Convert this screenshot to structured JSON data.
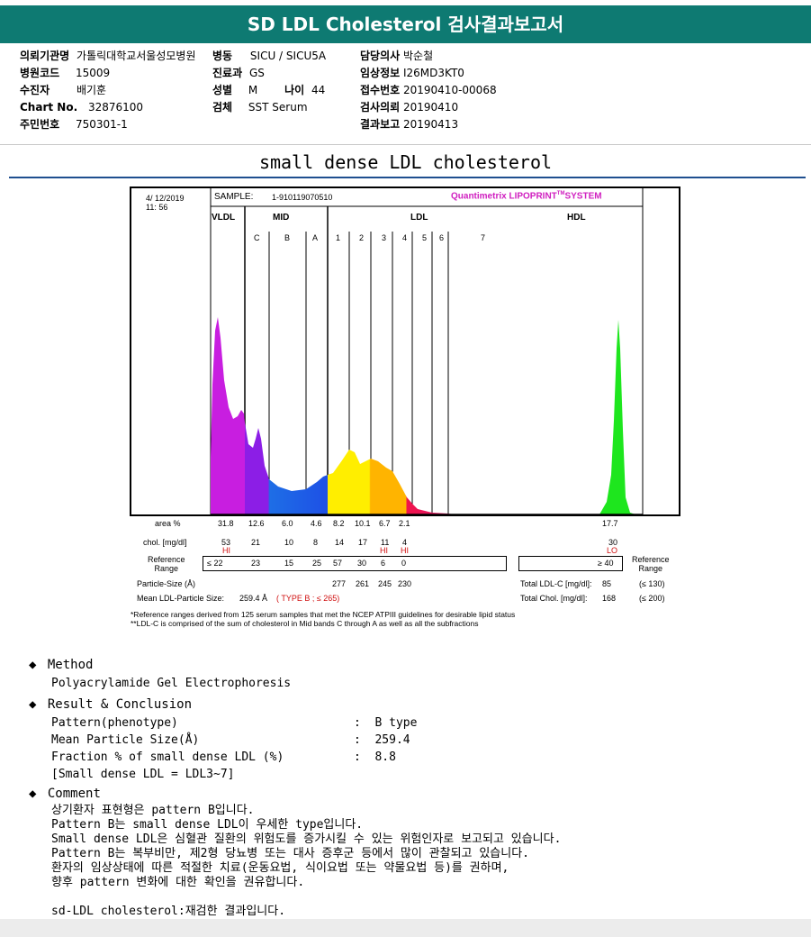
{
  "report_title": "SD LDL Cholesterol 검사결과보고서",
  "patient": {
    "col1": [
      {
        "label": "의뢰기관명",
        "value": "가톨릭대학교서울성모병원"
      },
      {
        "label": "병원코드",
        "value": "15009"
      },
      {
        "label": "수진자",
        "value": "배기훈"
      },
      {
        "label": "Chart No.",
        "value": "32876100"
      },
      {
        "label": "주민번호",
        "value": "750301-1"
      }
    ],
    "col2": [
      {
        "label": "병동",
        "value": "SICU / SICU5A"
      },
      {
        "label": "진료과",
        "value": "GS"
      },
      {
        "label": "성별",
        "value": "M"
      },
      {
        "label": "검체",
        "value": "SST Serum"
      }
    ],
    "age": {
      "label": "나이",
      "value": "44"
    },
    "col3": [
      {
        "label": "담당의사",
        "value": "박순철"
      },
      {
        "label": "임상정보",
        "value": "I26MD3KT0"
      },
      {
        "label": "접수번호",
        "value": "20190410-00068"
      },
      {
        "label": "검사의뢰",
        "value": "20190410"
      },
      {
        "label": "결과보고",
        "value": "20190413"
      }
    ]
  },
  "section_title": "small dense LDL cholesterol",
  "lipoprint": {
    "date": "4/ 12/2019",
    "time": "11: 56",
    "sample_label": "SAMPLE:",
    "sample_id": "1-910119070510",
    "brand": "Quantimetrix LIPOPRINT",
    "brand_tm": "TM",
    "brand_system": "SYSTEM",
    "groups": {
      "vldl": "VLDL",
      "mid": "MID",
      "ldl": "LDL",
      "hdl": "HDL"
    },
    "bands": [
      "C",
      "B",
      "A",
      "1",
      "2",
      "3",
      "4",
      "5",
      "6",
      "7"
    ],
    "area_label": "area %",
    "area_values": [
      "31.8",
      "12.6",
      "6.0",
      "4.6",
      "8.2",
      "10.1",
      "6.7",
      "2.1"
    ],
    "area_hdl": "17.7",
    "chol_label": "chol. [mg/dl]",
    "chol_values": [
      "53",
      "21",
      "10",
      "8",
      "14",
      "17",
      "11",
      "4"
    ],
    "chol_hdl": "30",
    "flags": [
      "HI",
      "",
      "",
      "",
      "",
      "",
      "HI",
      "HI"
    ],
    "flag_hdl": "LO",
    "ref_label_1": "Reference",
    "ref_label_2": "Range",
    "ref_values": [
      "≤ 22",
      "23",
      "15",
      "25",
      "57",
      "30",
      "6",
      "0"
    ],
    "ref_hdl": "≥ 40",
    "ref_right_1": "Reference",
    "ref_right_2": "Range",
    "particle_size_label": "Particle-Size (Å)",
    "particle_sizes": [
      "277",
      "261",
      "245",
      "230"
    ],
    "mean_ldl_label": "Mean LDL-Particle Size:",
    "mean_ldl_value": "259.4 Å",
    "mean_ldl_type": "( TYPE B ; ≤ 265)",
    "total_ldl_label": "Total LDL-C [mg/dl]:",
    "total_ldl_value": "85",
    "total_ldl_ref": "(≤ 130)",
    "total_chol_label": "Total Chol. [mg/dl]:",
    "total_chol_value": "168",
    "total_chol_ref": "(≤ 200)",
    "footnote1": "*Reference ranges derived from 125 serum samples that met the NCEP ATPIII guidelines for desirable lipid status",
    "footnote2": "**LDL-C is comprised of the sum of cholesterol in Mid bands C through A as well as all the subfractions"
  },
  "method": {
    "title": "Method",
    "text": "Polyacrylamide Gel Electrophoresis"
  },
  "result": {
    "title": "Result & Conclusion",
    "rows": [
      {
        "label": "Pattern(phenotype)",
        "value": "B type"
      },
      {
        "label": "Mean Particle Size(Å)",
        "value": "259.4"
      },
      {
        "label": "Fraction % of small dense LDL (%)",
        "value": "8.8"
      }
    ],
    "note": "[Small dense LDL = LDL3~7]"
  },
  "comment": {
    "title": "Comment",
    "lines": [
      "상기환자 표현형은 pattern B입니다.",
      "Pattern B는 small dense LDL이 우세한 type입니다.",
      "Small dense LDL은 심혈관 질환의 위험도를 증가시킬 수 있는 위험인자로 보고되고 있습니다.",
      "Pattern B는 복부비만, 제2형 당뇨병 또는 대사 증후군 등에서 많이 관찰되고 있습니다.",
      "환자의 임상상태에 따른 적절한 치료(운동요법, 식이요법 또는 약물요법 등)를 권하며,",
      "향후 pattern 변화에 대한 확인을 권유합니다."
    ],
    "retest": "sd-LDL cholesterol:재검한 결과입니다."
  },
  "colors": {
    "header_bg": "#0e7a72",
    "vldl": "#c81ee0",
    "mid_c": "#8c1ee6",
    "mid_b": "#1e6ee6",
    "ldl1": "#ffee00",
    "ldl2": "#ffb400",
    "ldl3": "#f0144b",
    "hdl": "#1ee61e"
  }
}
